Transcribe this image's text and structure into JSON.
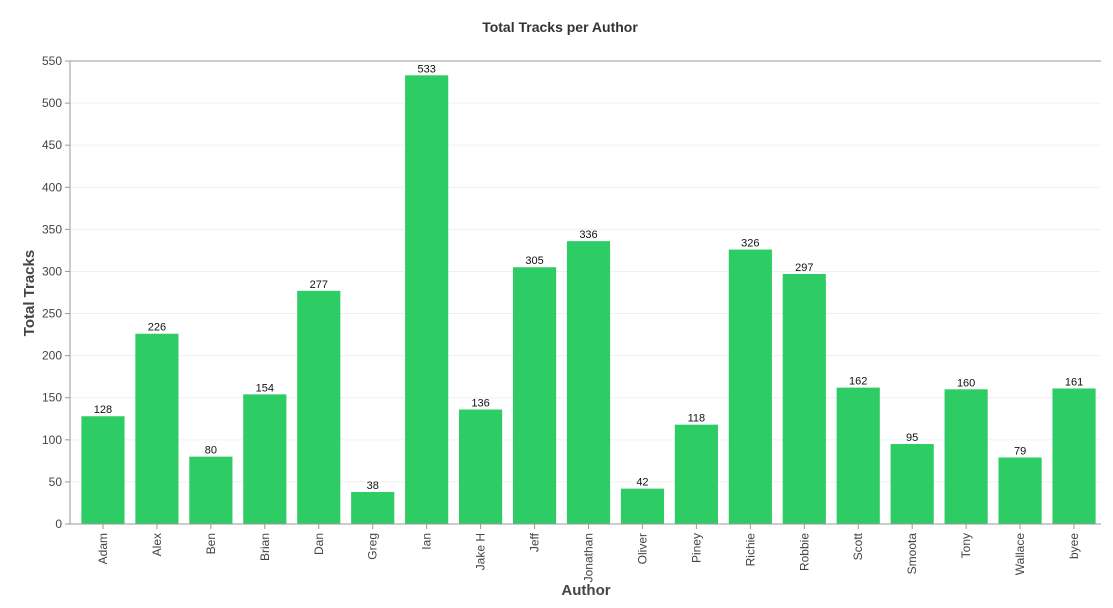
{
  "chart_data": {
    "type": "bar",
    "title": "Total Tracks per Author",
    "xlabel": "Author",
    "ylabel": "Total Tracks",
    "categories": [
      "Adam",
      "Alex",
      "Ben",
      "Brian",
      "Dan",
      "Greg",
      "Ian",
      "Jake H",
      "Jeff",
      "Jonathan",
      "Oliver",
      "Piney",
      "Richie",
      "Robbie",
      "Scott",
      "Smoota",
      "Tony",
      "Wallace",
      "byee"
    ],
    "values": [
      128,
      226,
      80,
      154,
      277,
      38,
      533,
      136,
      305,
      336,
      42,
      118,
      326,
      297,
      162,
      95,
      160,
      79,
      161
    ],
    "ylim": [
      0,
      550
    ],
    "yticks": [
      0,
      50,
      100,
      150,
      200,
      250,
      300,
      350,
      400,
      450,
      500,
      550
    ],
    "grid": true,
    "bar_color": "#2ecc65"
  }
}
